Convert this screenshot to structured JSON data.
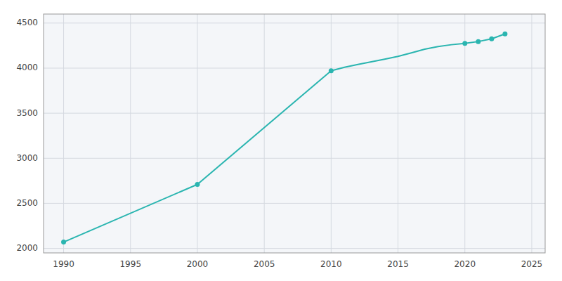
{
  "chart_data": {
    "type": "line",
    "x": [
      1990,
      2000,
      2010,
      2011,
      2012,
      2013,
      2014,
      2015,
      2016,
      2017,
      2018,
      2019,
      2020,
      2021,
      2022,
      2023
    ],
    "series": [
      {
        "type": "line",
        "color": "#2ab5b0",
        "values": [
          2070,
          2710,
          3970,
          4010,
          4040,
          4070,
          4100,
          4130,
          4170,
          4210,
          4240,
          4260,
          4275,
          4295,
          4325,
          4380
        ]
      },
      {
        "type": "scatter",
        "color": "#2ab5b0",
        "marker": "circle",
        "values": [
          2070,
          2710,
          3970,
          null,
          null,
          null,
          null,
          null,
          null,
          null,
          null,
          null,
          4275,
          4295,
          4325,
          4380
        ]
      }
    ],
    "xlim": [
      1988.5,
      2026
    ],
    "xticks": [
      1990,
      1995,
      2000,
      2005,
      2010,
      2015,
      2020,
      2025
    ],
    "ylim": [
      1950,
      4600
    ],
    "yticks": [
      2000,
      2500,
      3000,
      3500,
      4000,
      4500
    ],
    "grid": true
  }
}
